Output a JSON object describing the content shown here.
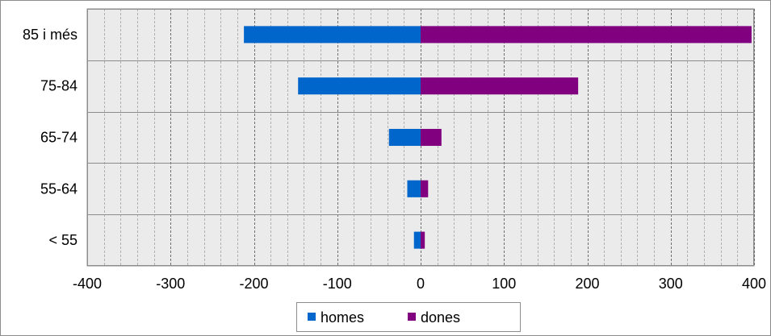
{
  "chart_data": {
    "type": "bar",
    "orientation": "horizontal",
    "stacked": true,
    "categories": [
      "85 i més",
      "75-84",
      "65-74",
      "55-64",
      "< 55"
    ],
    "series": [
      {
        "name": "homes",
        "values": [
          -212,
          -147,
          -38,
          -16,
          -8
        ],
        "color": "#0066cc"
      },
      {
        "name": "dones",
        "values": [
          397,
          189,
          25,
          9,
          5
        ],
        "color": "#800080"
      }
    ],
    "x_ticks": [
      -400,
      -300,
      -200,
      -100,
      0,
      100,
      200,
      300,
      400
    ],
    "x_tick_labels": [
      "-400",
      "-300",
      "-200",
      "-100",
      "0",
      "100",
      "200",
      "300",
      "400"
    ],
    "xlim": [
      -400,
      400
    ],
    "title": "",
    "xlabel": "",
    "ylabel": "",
    "grid": true,
    "legend_position": "bottom",
    "plot_background": "#ebebeb"
  }
}
